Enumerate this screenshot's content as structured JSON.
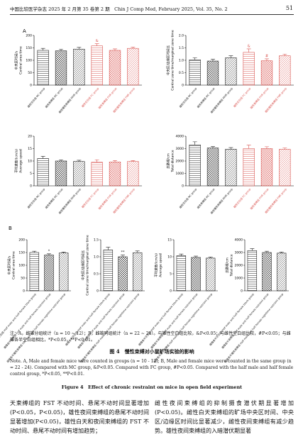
{
  "header": {
    "journal": "中国比较医学杂志 2025 年 2 月第 35 卷第 2 期　Chin J Comp Med, February 2025, Vol. 35, No. 2",
    "page": "51"
  },
  "panel_labels": [
    "A",
    "B"
  ],
  "chart_data": [
    {
      "type": "bar",
      "ylabel_zh": "中央区时间/s",
      "ylabel_en": "Central area time",
      "ylim": [
        0,
        200
      ],
      "yticks": [
        0,
        50,
        100,
        150,
        200
      ],
      "categories": [
        "雌性空白组 NC group",
        "雌性束缚组 MC group",
        "雌性慢性束缚组 MHR group",
        "雄性空白组 FC group",
        "雄性束缚组 FHR group",
        "雄性慢性束缚组 FNR group"
      ],
      "values": [
        140,
        138,
        145,
        158,
        140,
        148
      ],
      "errors": [
        8,
        7,
        7,
        9,
        6,
        5
      ],
      "annotations": [
        null,
        null,
        null,
        "&",
        null,
        null
      ],
      "colors": [
        "#222222",
        "#222222",
        "#222222",
        "#d9534f",
        "#d9534f",
        "#d9534f"
      ]
    },
    {
      "type": "bar",
      "ylabel_zh": "中央区/边缘区时间比",
      "ylabel_en": "Central zone time/marginal zone time",
      "ylim": [
        0,
        2
      ],
      "yticks": [
        0,
        0.5,
        {
          "value": 1,
          "label": "1.0"
        },
        1.5,
        {
          "value": 2,
          "label": "2.0"
        }
      ],
      "categories": [
        "雌性空白组 NC group",
        "雌性束缚组 MC group",
        "雌性慢性束缚组 MHR group",
        "雄性空白组 FC group",
        "雄性束缚组 FHR group",
        "雄性慢性束缚组 FNR group"
      ],
      "values": [
        1.02,
        0.97,
        1.1,
        1.32,
        0.98,
        1.18
      ],
      "errors": [
        0.08,
        0.07,
        0.08,
        0.14,
        0.08,
        0.07
      ],
      "annotations": [
        null,
        null,
        null,
        "&",
        "#",
        null
      ],
      "colors": [
        "#222222",
        "#222222",
        "#222222",
        "#d9534f",
        "#d9534f",
        "#d9534f"
      ]
    },
    {
      "type": "bar",
      "ylabel_zh": "平均速度/(cm/s)",
      "ylabel_en": "Average speed",
      "ylim": [
        0,
        20
      ],
      "yticks": [
        0,
        5,
        10,
        15,
        20
      ],
      "categories": [
        "雌性空白组 NC group",
        "雌性束缚组 MC group",
        "雌性慢性束缚组 MHR group",
        "雄性空白组 FC group",
        "雄性束缚组 FHR group",
        "雄性慢性束缚组 FNR group"
      ],
      "values": [
        11,
        10,
        9.8,
        9.5,
        9.6,
        9.8
      ],
      "errors": [
        0.9,
        0.5,
        0.5,
        1,
        0.6,
        0.4
      ],
      "annotations": [
        null,
        null,
        null,
        null,
        null,
        null
      ],
      "colors": [
        "#222222",
        "#222222",
        "#222222",
        "#d9534f",
        "#d9534f",
        "#d9534f"
      ]
    },
    {
      "type": "bar",
      "ylabel_zh": "总路程/cm",
      "ylabel_en": "Total distance",
      "ylim": [
        0,
        4000
      ],
      "yticks": [
        0,
        1000,
        2000,
        3000,
        4000
      ],
      "categories": [
        "雌性空白组 NC group",
        "雌性束缚组 MC group",
        "雌性慢性束缚组 MHR group",
        "雄性空白组 FC group",
        "雄性束缚组 FHR group",
        "雄性慢性束缚组 FNR group"
      ],
      "values": [
        3300,
        3050,
        2950,
        3000,
        3000,
        2950
      ],
      "errors": [
        250,
        120,
        130,
        280,
        150,
        100
      ],
      "annotations": [
        null,
        null,
        null,
        null,
        null,
        null
      ],
      "colors": [
        "#222222",
        "#222222",
        "#222222",
        "#d9534f",
        "#d9534f",
        "#d9534f"
      ]
    },
    {
      "type": "bar",
      "ylabel_zh": "中央区时间/s",
      "ylabel_en": "Central area time",
      "ylim": [
        0,
        200
      ],
      "yticks": [
        0,
        50,
        100,
        150,
        200
      ],
      "categories": [
        "雌雄各半空白组 Half male and half female blank group",
        "雌雄各半束缚组 Half male and half female restraint group",
        "雌雄各半慢性束缚组 Half male and half female nighttime restraint group"
      ],
      "values": [
        150,
        140,
        148
      ],
      "errors": [
        5,
        5,
        4
      ],
      "annotations": [
        null,
        "*",
        null
      ],
      "colors": [
        "#222222",
        "#222222",
        "#222222"
      ]
    },
    {
      "type": "bar",
      "ylabel_zh": "中央区/边缘区时间比",
      "ylabel_en": "Central zone time/marginal zone time",
      "ylim": [
        0,
        1.5
      ],
      "yticks": [
        0,
        0.5,
        {
          "value": 1,
          "label": "1.0"
        },
        1.5
      ],
      "categories": [
        "雌雄各半空白组 Half male and half female blank group",
        "雌雄各半束缚组 Half male and half female restraint group",
        "雌雄各半慢性束缚组 Half male and half female nighttime restraint group"
      ],
      "values": [
        1.2,
        1.0,
        1.12
      ],
      "errors": [
        0.08,
        0.05,
        0.05
      ],
      "annotations": [
        null,
        "**",
        null
      ],
      "colors": [
        "#222222",
        "#222222",
        "#222222"
      ]
    },
    {
      "type": "bar",
      "ylabel_zh": "平均速度/(cm/s)",
      "ylabel_en": "Average speed",
      "ylim": [
        0,
        15
      ],
      "yticks": [
        0,
        5,
        10,
        15
      ],
      "categories": [
        "雌雄各半空白组 Half male and half female blank group",
        "雌雄各半束缚组 Half male and half female restraint group",
        "雌雄各半慢性束缚组 Half male and half female nighttime restraint group"
      ],
      "values": [
        10.3,
        9.8,
        9.6
      ],
      "errors": [
        0.5,
        0.4,
        0.3
      ],
      "annotations": [
        null,
        null,
        null
      ],
      "colors": [
        "#222222",
        "#222222",
        "#222222"
      ]
    },
    {
      "type": "bar",
      "ylabel_zh": "总路程/cm",
      "ylabel_en": "Total distance",
      "ylim": [
        0,
        4000
      ],
      "yticks": [
        0,
        1000,
        2000,
        3000,
        4000
      ],
      "categories": [
        "雌雄各半空白组 Half male and half female blank group",
        "雌雄各半束缚组 Half male and half female restraint group",
        "雌雄各半慢性束缚组 Half male and half female nighttime restraint group"
      ],
      "values": [
        3150,
        3000,
        2950
      ],
      "errors": [
        150,
        100,
        90
      ],
      "annotations": [
        null,
        null,
        null
      ],
      "colors": [
        "#222222",
        "#222222",
        "#222222"
      ]
    }
  ],
  "caption": {
    "note_zh": "注：A，雌雄分组统计（n = 10 ~ 12）；B，雌雄同组统计（n = 22 ~ 24）。与雄性空白组比较，&P<0.05；与雌性空白组比较，#P<0.05；与雌雄各半空白组相比，*P<0.05，**P<0.01。",
    "title_zh": "图 4　慢性束缚对小鼠旷场实验的影响",
    "note_en": "Note. A, Male and female mice were counted in groups (n = 10 - 12); B, Male and female mice were counted in the same group (n = 22 - 24). Compared with MC group, &P<0.05. Compared with FC group, #P<0.05. Compared with the half male and half female control group, *P<0.05, **P<0.01.",
    "title_en": "Figure 4　Effect of chronic restraint on mice in open field experiment"
  },
  "body": [
    "天束缚组的 FST 不动时间、悬尾不动时间显著增加(P<0.05，P<0.05)，雄性夜间束缚组的悬尾不动时间显著增加(P<0.05)，雄性白天和夜间束缚组的 FST 不动时间、悬尾不动时间有增加趋势；",
    "雌性夜间束缚组的抑制摄食潜伏期显著增加(P<0.05)。雌性白天束缚组的旷场中央区时间、中央区/边缘区时间比显著减少，雌性夜间束缚组有减少趋势。雄性夜间束缚组的入暗潜伏期显著"
  ]
}
